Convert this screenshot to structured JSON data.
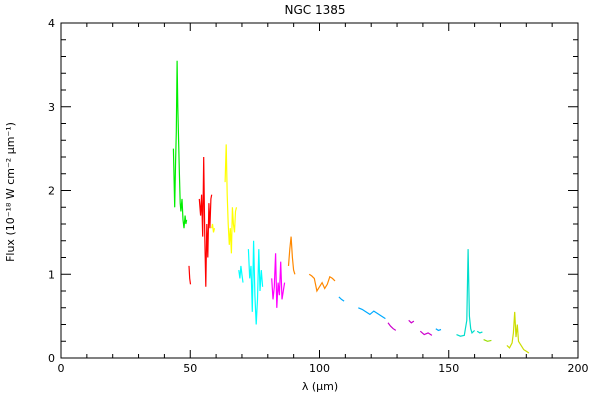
{
  "chart_data": {
    "type": "line",
    "title": "NGC 1385",
    "xlabel": "λ (μm)",
    "ylabel": "Flux (10⁻¹⁸ W cm⁻² μm⁻¹)",
    "xlim": [
      0,
      200
    ],
    "ylim": [
      0,
      4
    ],
    "xticks": [
      0,
      50,
      100,
      150,
      200
    ],
    "yticks": [
      0,
      1,
      2,
      3,
      4
    ],
    "grid": false,
    "series": [
      {
        "color": "#00ee00",
        "x": [
          43.5,
          44.0,
          44.3,
          44.6,
          44.9,
          45.2,
          45.5,
          45.8,
          46.1,
          46.4,
          46.8,
          47.2,
          47.6,
          48.0,
          48.3,
          48.6
        ],
        "y": [
          2.5,
          1.8,
          2.3,
          2.7,
          3.55,
          3.0,
          2.6,
          2.2,
          1.85,
          1.75,
          1.9,
          1.65,
          1.55,
          1.7,
          1.6,
          1.65
        ]
      },
      {
        "color": "#ff0000",
        "x": [
          49.5,
          49.8,
          50.1
        ],
        "y": [
          1.1,
          0.95,
          0.88
        ]
      },
      {
        "color": "#ff0000",
        "x": [
          53.5,
          54.0,
          54.4,
          54.8,
          55.2,
          55.6,
          56.0,
          56.4,
          56.8,
          57.2,
          57.6,
          58.0,
          58.3
        ],
        "y": [
          1.9,
          1.7,
          1.95,
          1.45,
          2.4,
          1.5,
          0.85,
          1.6,
          1.2,
          1.85,
          1.55,
          1.9,
          1.95
        ]
      },
      {
        "color": "#ffff00",
        "x": [
          58.3,
          58.6,
          59.0,
          59.4
        ],
        "y": [
          1.55,
          1.6,
          1.5,
          1.55
        ]
      },
      {
        "color": "#ffff00",
        "x": [
          63.5,
          63.9,
          64.3,
          64.7,
          65.1,
          65.5,
          65.9,
          66.3,
          66.7,
          67.1,
          67.5,
          67.9
        ],
        "y": [
          2.1,
          2.55,
          1.95,
          1.6,
          1.35,
          1.55,
          1.25,
          1.8,
          1.6,
          1.5,
          1.75,
          1.8
        ]
      },
      {
        "color": "#00ffff",
        "x": [
          68.8,
          69.2,
          69.6,
          70.0,
          70.4
        ],
        "y": [
          1.05,
          0.95,
          1.1,
          1.0,
          0.9
        ]
      },
      {
        "color": "#00ffff",
        "x": [
          72.5,
          73.0,
          73.5,
          74.0,
          74.5,
          75.0,
          75.5,
          76.0,
          76.5,
          77.0,
          77.5,
          78.0
        ],
        "y": [
          1.3,
          0.95,
          1.1,
          0.55,
          1.4,
          0.75,
          0.4,
          0.7,
          1.3,
          0.8,
          1.05,
          0.85
        ]
      },
      {
        "color": "#ff00ff",
        "x": [
          81.5,
          82.0,
          82.5,
          83.0,
          83.5,
          84.0,
          84.5,
          85.0,
          85.5,
          86.0,
          86.5
        ],
        "y": [
          0.95,
          0.7,
          0.85,
          1.25,
          0.6,
          0.9,
          0.75,
          1.15,
          0.7,
          0.8,
          0.9
        ]
      },
      {
        "color": "#ff8800",
        "x": [
          88.0,
          88.5,
          89.0,
          89.5,
          90.0,
          90.5
        ],
        "y": [
          1.1,
          1.3,
          1.45,
          1.2,
          1.05,
          1.0
        ]
      },
      {
        "color": "#ff8800",
        "x": [
          96.0,
          97.0,
          98.0,
          99.0,
          100.0,
          101.0,
          102.0,
          103.0,
          104.0,
          105.0,
          106.0
        ],
        "y": [
          1.0,
          0.98,
          0.95,
          0.8,
          0.85,
          0.9,
          0.83,
          0.88,
          0.97,
          0.95,
          0.92
        ]
      },
      {
        "color": "#00aaff",
        "x": [
          107.5,
          108.5,
          109.5
        ],
        "y": [
          0.73,
          0.7,
          0.68
        ]
      },
      {
        "color": "#00aaff",
        "x": [
          115.0,
          116.5,
          118.0,
          119.5,
          121.0,
          122.5,
          124.0,
          125.5
        ],
        "y": [
          0.6,
          0.58,
          0.55,
          0.52,
          0.56,
          0.53,
          0.5,
          0.47
        ]
      },
      {
        "color": "#cc00cc",
        "x": [
          126.5,
          127.5,
          128.5,
          129.5
        ],
        "y": [
          0.42,
          0.38,
          0.35,
          0.33
        ]
      },
      {
        "color": "#cc00cc",
        "x": [
          134.5,
          135.5,
          136.5
        ],
        "y": [
          0.45,
          0.42,
          0.44
        ]
      },
      {
        "color": "#cc00cc",
        "x": [
          139.0,
          140.5,
          142.0,
          143.5
        ],
        "y": [
          0.32,
          0.28,
          0.3,
          0.27
        ]
      },
      {
        "color": "#00aaff",
        "x": [
          145.0,
          146.0,
          147.0
        ],
        "y": [
          0.35,
          0.33,
          0.34
        ]
      },
      {
        "color": "#00ddcc",
        "x": [
          153.0,
          154.5,
          156.0,
          157.0,
          157.5,
          158.0,
          158.5,
          159.0,
          160.0
        ],
        "y": [
          0.28,
          0.26,
          0.27,
          0.45,
          1.3,
          0.5,
          0.35,
          0.3,
          0.33
        ]
      },
      {
        "color": "#00ddcc",
        "x": [
          161.0,
          162.0,
          163.0
        ],
        "y": [
          0.32,
          0.3,
          0.31
        ]
      },
      {
        "color": "#99dd00",
        "x": [
          163.5,
          165.0,
          166.5
        ],
        "y": [
          0.22,
          0.2,
          0.21
        ]
      },
      {
        "color": "#ccdd00",
        "x": [
          172.5,
          173.5,
          174.5,
          175.0,
          175.5,
          176.0,
          176.5,
          177.0,
          178.0,
          179.0,
          180.0,
          181.0
        ],
        "y": [
          0.15,
          0.12,
          0.18,
          0.3,
          0.55,
          0.25,
          0.4,
          0.2,
          0.15,
          0.1,
          0.08,
          0.06
        ]
      }
    ]
  }
}
